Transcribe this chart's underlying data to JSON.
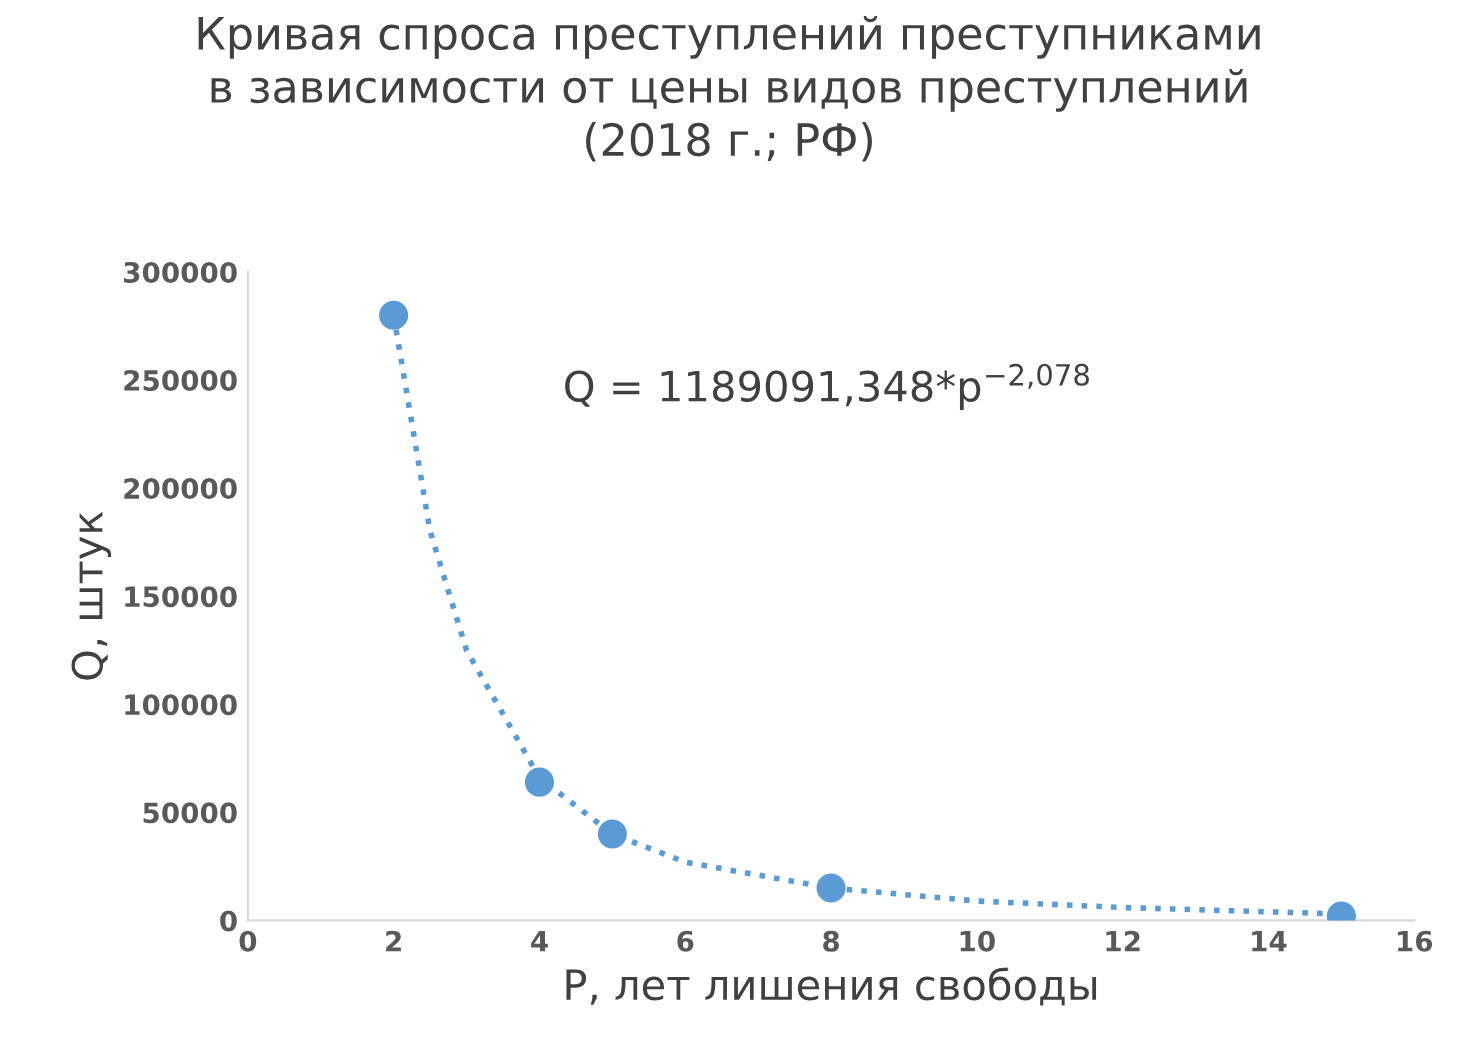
{
  "chart_data": {
    "type": "scatter",
    "title": "Кривая спроса преступлений преступниками\nв зависимости от цены видов преступлений\n(2018 г.; РФ)",
    "xlabel": "P, лет лишения свободы",
    "ylabel": "Q, штук",
    "series": [
      {
        "color": "#5b9bd5",
        "marker": "circle",
        "x": [
          2,
          4,
          5,
          8,
          15
        ],
        "values": [
          280000,
          64000,
          40000,
          15000,
          2000
        ]
      },
      {
        "type": "line",
        "color": "#5b9bd5",
        "marker": "none",
        "line_style": "dotted",
        "x": [
          2,
          2.5,
          3,
          4,
          5,
          6,
          8,
          10,
          12,
          15
        ],
        "values": [
          280000,
          180000,
          125000,
          66000,
          40000,
          27000,
          15000,
          9000,
          6000,
          3000
        ]
      }
    ],
    "annotations": [
      "Q = 1189091,348*p$^{−2,078}$"
    ],
    "xlim": [
      0,
      16
    ],
    "xticks": [
      0,
      2,
      4,
      6,
      8,
      10,
      12,
      14,
      16
    ],
    "ylim": [
      0,
      300000
    ],
    "yticks": [
      0,
      50000,
      100000,
      150000,
      200000,
      250000,
      300000
    ],
    "grid": false,
    "legend": false
  }
}
